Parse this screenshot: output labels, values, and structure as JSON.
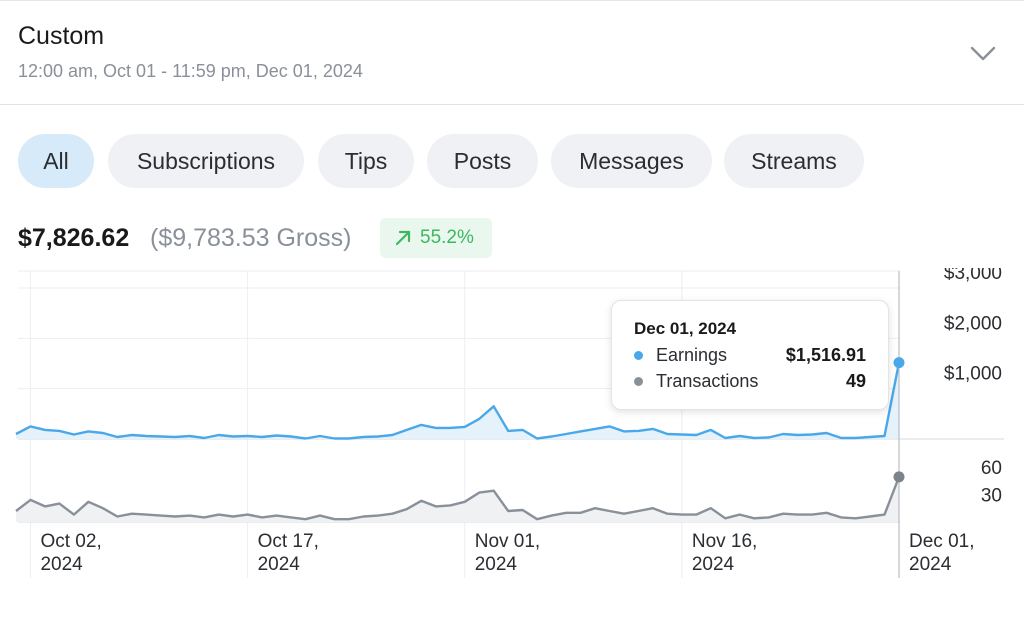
{
  "date_range": {
    "title": "Custom",
    "subtitle": "12:00 am, Oct 01 - 11:59 pm, Dec 01, 2024",
    "expand_icon": "chevron-down-icon"
  },
  "filters": [
    {
      "label": "All",
      "active": true
    },
    {
      "label": "Subscriptions",
      "active": false
    },
    {
      "label": "Tips",
      "active": false
    },
    {
      "label": "Posts",
      "active": false
    },
    {
      "label": "Messages",
      "active": false
    },
    {
      "label": "Streams",
      "active": false
    }
  ],
  "summary": {
    "net": "$7,826.62",
    "gross": "($9,783.53 Gross)",
    "change": "55.2%",
    "change_icon": "arrow-up-right-icon"
  },
  "colors": {
    "earnings": "#4aa8e8",
    "transactions": "#8a9099",
    "positive": "#3cb85f",
    "active_tab": "#d6eaf9"
  },
  "tooltip": {
    "date": "Dec 01, 2024",
    "rows": [
      {
        "label": "Earnings",
        "value": "$1,516.91"
      },
      {
        "label": "Transactions",
        "value": "49"
      }
    ]
  },
  "chart_data": [
    {
      "type": "area",
      "name": "Earnings",
      "x_ticks": [
        {
          "label": [
            "Oct 02,",
            "2024"
          ],
          "index": 1
        },
        {
          "label": [
            "Oct 17,",
            "2024"
          ],
          "index": 16
        },
        {
          "label": [
            "Nov 01,",
            "2024"
          ],
          "index": 31
        },
        {
          "label": [
            "Nov 16,",
            "2024"
          ],
          "index": 46
        },
        {
          "label": [
            "Dec 01,",
            "2024"
          ],
          "index": 61
        }
      ],
      "y_ticks": [
        {
          "value": 1000,
          "label": "$1,000"
        },
        {
          "value": 2000,
          "label": "$2,000"
        },
        {
          "value": 3000,
          "label": "$3,000"
        }
      ],
      "ylim": [
        0,
        3000
      ],
      "values": [
        100,
        250,
        180,
        160,
        90,
        150,
        120,
        40,
        80,
        60,
        50,
        40,
        60,
        20,
        80,
        50,
        60,
        40,
        70,
        50,
        10,
        60,
        10,
        10,
        40,
        50,
        80,
        180,
        280,
        220,
        220,
        240,
        400,
        650,
        160,
        180,
        10,
        50,
        100,
        150,
        200,
        250,
        150,
        160,
        200,
        100,
        90,
        80,
        180,
        20,
        60,
        20,
        30,
        100,
        80,
        90,
        120,
        20,
        20,
        40,
        60,
        1516.91
      ]
    },
    {
      "type": "area",
      "name": "Transactions",
      "y_ticks": [
        {
          "value": 30,
          "label": "30"
        },
        {
          "value": 60,
          "label": "60"
        }
      ],
      "ylim": [
        0,
        75
      ],
      "values": [
        12,
        24,
        17,
        20,
        8,
        22,
        15,
        6,
        9,
        8,
        7,
        6,
        7,
        5,
        8,
        6,
        8,
        5,
        7,
        5,
        3,
        7,
        3,
        3,
        6,
        7,
        9,
        14,
        23,
        17,
        18,
        22,
        32,
        34,
        12,
        13,
        3,
        7,
        10,
        10,
        15,
        12,
        9,
        12,
        15,
        9,
        8,
        8,
        15,
        4,
        8,
        4,
        5,
        9,
        8,
        8,
        10,
        5,
        4,
        6,
        8,
        49
      ]
    }
  ]
}
